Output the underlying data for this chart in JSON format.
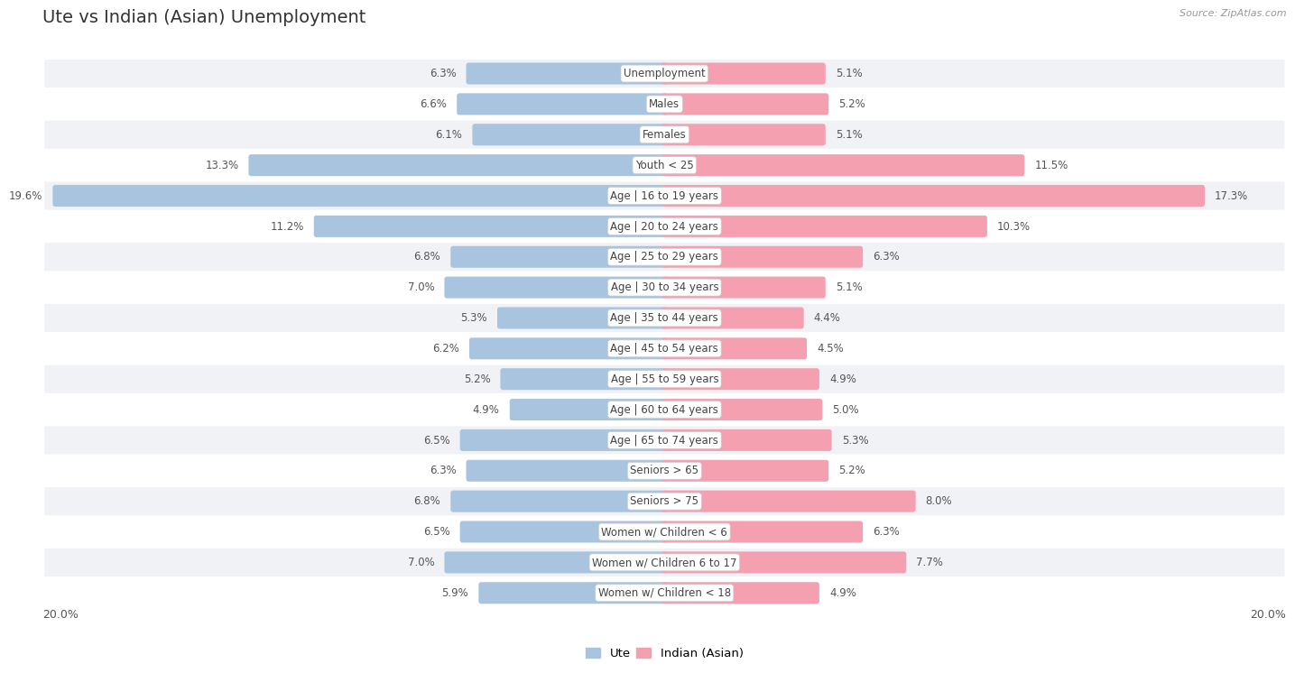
{
  "title": "Ute vs Indian (Asian) Unemployment",
  "source": "Source: ZipAtlas.com",
  "categories": [
    "Unemployment",
    "Males",
    "Females",
    "Youth < 25",
    "Age | 16 to 19 years",
    "Age | 20 to 24 years",
    "Age | 25 to 29 years",
    "Age | 30 to 34 years",
    "Age | 35 to 44 years",
    "Age | 45 to 54 years",
    "Age | 55 to 59 years",
    "Age | 60 to 64 years",
    "Age | 65 to 74 years",
    "Seniors > 65",
    "Seniors > 75",
    "Women w/ Children < 6",
    "Women w/ Children 6 to 17",
    "Women w/ Children < 18"
  ],
  "ute_values": [
    6.3,
    6.6,
    6.1,
    13.3,
    19.6,
    11.2,
    6.8,
    7.0,
    5.3,
    6.2,
    5.2,
    4.9,
    6.5,
    6.3,
    6.8,
    6.5,
    7.0,
    5.9
  ],
  "indian_values": [
    5.1,
    5.2,
    5.1,
    11.5,
    17.3,
    10.3,
    6.3,
    5.1,
    4.4,
    4.5,
    4.9,
    5.0,
    5.3,
    5.2,
    8.0,
    6.3,
    7.7,
    4.9
  ],
  "ute_color": "#a8c4de",
  "indian_color": "#f4a0b0",
  "row_bg_even": "#f0f2f5",
  "row_bg_odd": "#ffffff",
  "max_val": 20.0,
  "legend_ute": "Ute",
  "legend_indian": "Indian (Asian)",
  "title_fontsize": 14,
  "label_fontsize": 8.5,
  "value_fontsize": 8.5,
  "axis_label_fontsize": 9
}
